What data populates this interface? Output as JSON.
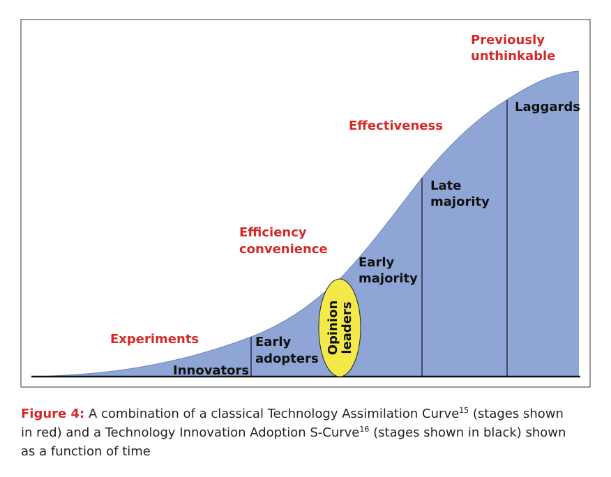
{
  "stages_red": [
    {
      "lines": [
        "Previously",
        "unthinkable"
      ]
    },
    {
      "lines": [
        "Effectiveness"
      ]
    },
    {
      "lines": [
        "Efficiency",
        "convenience"
      ]
    },
    {
      "lines": [
        "Experiments"
      ]
    }
  ],
  "stages_black": [
    {
      "lines": [
        "Laggards"
      ]
    },
    {
      "lines": [
        "Late",
        "majority"
      ]
    },
    {
      "lines": [
        "Early",
        "majority"
      ]
    },
    {
      "lines": [
        "Early",
        "adopters"
      ]
    },
    {
      "lines": [
        "Innovators"
      ]
    }
  ],
  "opinion_leaders": {
    "lines": [
      "Opinion",
      "leaders"
    ]
  },
  "caption": {
    "label": "Figure 4:",
    "text1": " A combination of a classical Technology Assimilation Curve",
    "sup1": "15",
    "text2": " (stages shown in red) and a Technology Innovation Adoption S-Curve",
    "sup2": "16",
    "text3": " (stages shown in black) shown as a function of time"
  }
}
